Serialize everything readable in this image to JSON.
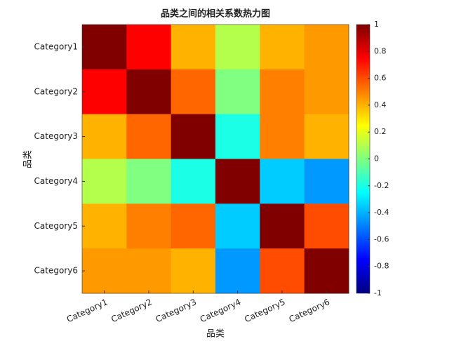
{
  "chart_data": {
    "type": "heatmap",
    "title": "品类之间的相关系数热力图",
    "x_label": "品类",
    "y_label": "品类",
    "categories": [
      "Category1",
      "Category2",
      "Category3",
      "Category4",
      "Category5",
      "Category6"
    ],
    "y_categories": [
      "Category1",
      "Category2",
      "Category3",
      "Category4",
      "Category5",
      "Category6"
    ],
    "values": [
      [
        1,
        0.75,
        0.4,
        0.1,
        0.4,
        0.45
      ],
      [
        0.75,
        1,
        0.55,
        0.0,
        0.5,
        0.45
      ],
      [
        0.4,
        0.55,
        1,
        -0.2,
        0.5,
        0.4
      ],
      [
        0.1,
        0.0,
        -0.2,
        1,
        -0.35,
        -0.45
      ],
      [
        0.4,
        0.5,
        0.55,
        -0.35,
        1,
        0.6
      ],
      [
        0.45,
        0.45,
        0.4,
        -0.45,
        0.6,
        1
      ]
    ],
    "colormap": "jet",
    "clim": [
      -1,
      1
    ],
    "cticks": [
      -1,
      -0.8,
      -0.6,
      -0.4,
      -0.2,
      0,
      0.2,
      0.4,
      0.6,
      0.8,
      1
    ]
  }
}
